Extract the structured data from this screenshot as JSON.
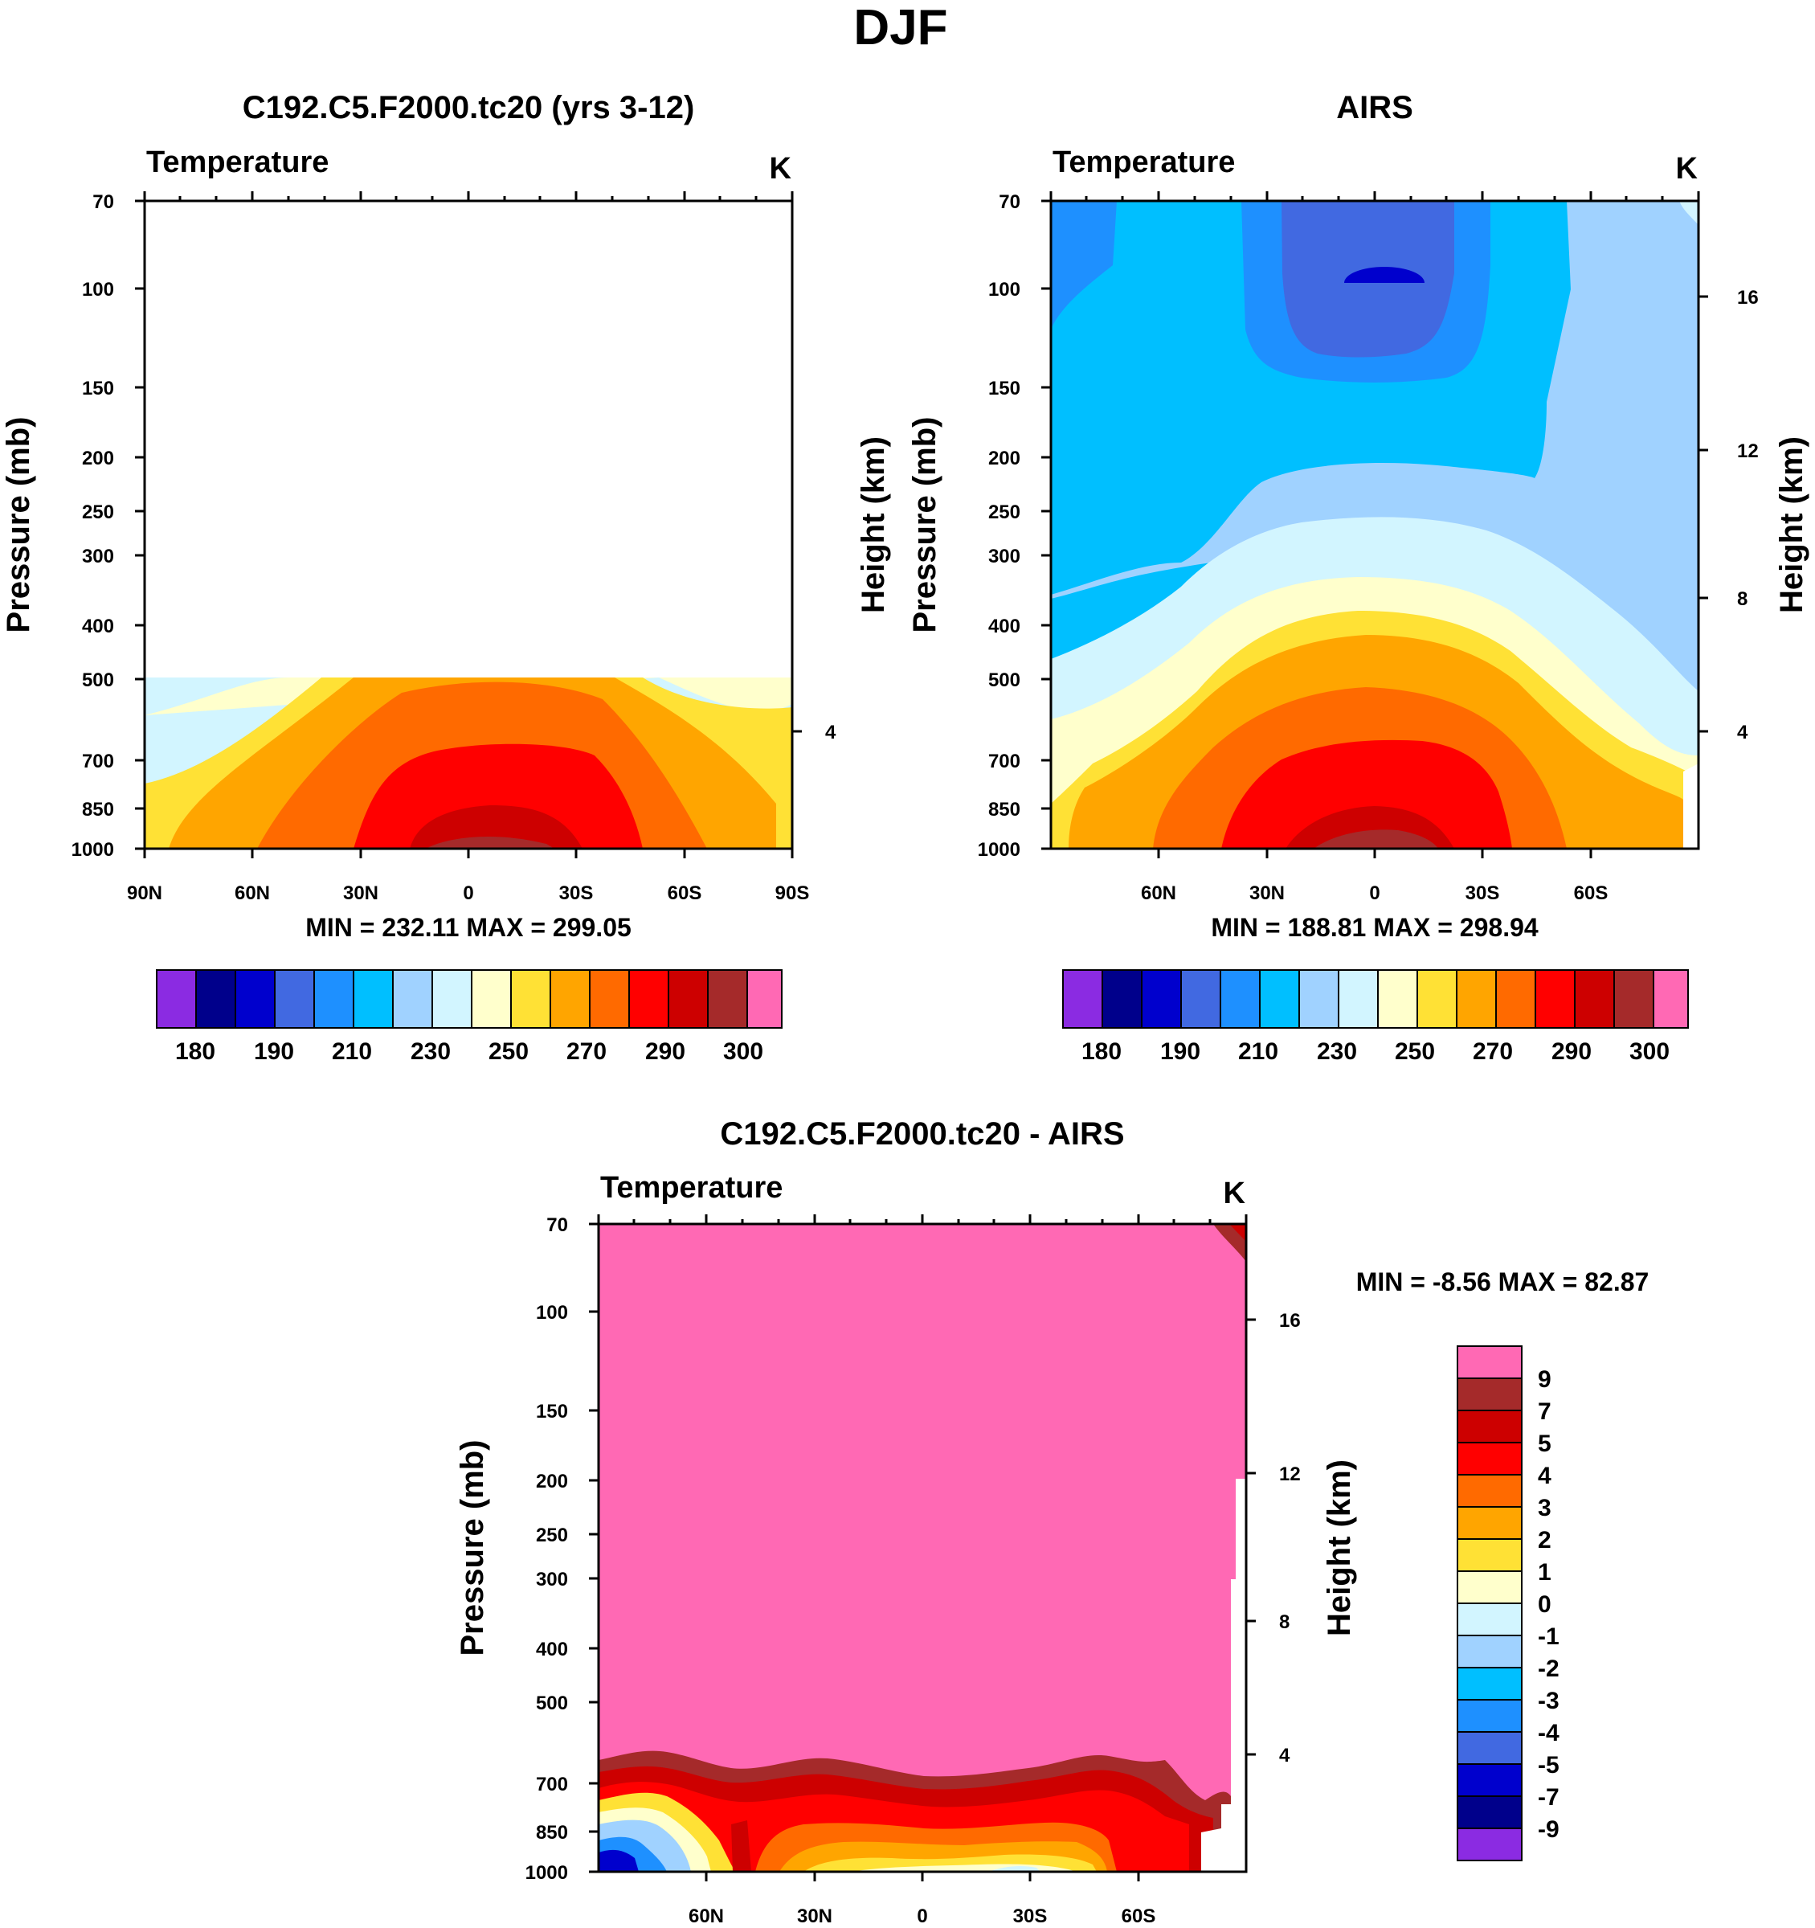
{
  "figure": {
    "title": "DJF"
  },
  "colors": {
    "contour_palette": [
      "#8b2be2",
      "#00008b",
      "#0000cd",
      "#4169e1",
      "#1e90ff",
      "#00bfff",
      "#a0d2ff",
      "#d2f5ff",
      "#ffffcc",
      "#ffe135",
      "#ffa500",
      "#ff6a00",
      "#ff0000",
      "#cd0000",
      "#a52a2a",
      "#ff69b4"
    ],
    "white": "#ffffff"
  },
  "chart_data": [
    {
      "id": "model",
      "type": "contour",
      "title": "C192.C5.F2000.tc20 (yrs 3-12)",
      "variable": "Temperature",
      "units": "K",
      "ylabel": "Pressure (mb)",
      "right_label": "Height (km)",
      "y_ticks": [
        "70",
        "100",
        "150",
        "200",
        "250",
        "300",
        "400",
        "500",
        "700",
        "850",
        "1000"
      ],
      "y_right_ticks": [
        "4"
      ],
      "x_ticks": [
        "90N",
        "60N",
        "30N",
        "0",
        "30S",
        "60S",
        "90S"
      ],
      "min_max": "MIN = 232.11   MAX = 299.05",
      "data_range": {
        "min": 232.11,
        "max": 299.05
      },
      "colorbar_labels": [
        "180",
        "190",
        "210",
        "230",
        "250",
        "270",
        "290",
        "300"
      ]
    },
    {
      "id": "obs",
      "type": "contour",
      "title": "AIRS",
      "variable": "Temperature",
      "units": "K",
      "ylabel": "Pressure (mb)",
      "right_label": "Height (km)",
      "y_ticks": [
        "70",
        "100",
        "150",
        "200",
        "250",
        "300",
        "400",
        "500",
        "700",
        "850",
        "1000"
      ],
      "y_right_ticks": [
        "16",
        "12",
        "8",
        "4"
      ],
      "x_ticks": [
        "60N",
        "30N",
        "0",
        "30S",
        "60S"
      ],
      "min_max": "MIN = 188.81   MAX = 298.94",
      "data_range": {
        "min": 188.81,
        "max": 298.94
      },
      "colorbar_labels": [
        "180",
        "190",
        "210",
        "230",
        "250",
        "270",
        "290",
        "300"
      ]
    },
    {
      "id": "diff",
      "type": "contour",
      "title": "C192.C5.F2000.tc20 - AIRS",
      "variable": "Temperature",
      "units": "K",
      "ylabel": "Pressure (mb)",
      "right_label": "Height (km)",
      "y_ticks": [
        "70",
        "100",
        "150",
        "200",
        "250",
        "300",
        "400",
        "500",
        "700",
        "850",
        "1000"
      ],
      "y_right_ticks": [
        "16",
        "12",
        "8",
        "4"
      ],
      "x_ticks": [
        "60N",
        "30N",
        "0",
        "30S",
        "60S"
      ],
      "min_max": "MIN =  -8.56   MAX =  82.87",
      "data_range": {
        "min": -8.56,
        "max": 82.87
      },
      "colorbar_labels": [
        "9",
        "7",
        "5",
        "4",
        "3",
        "2",
        "1",
        "0",
        "-1",
        "-2",
        "-3",
        "-4",
        "-5",
        "-7",
        "-9"
      ]
    }
  ]
}
